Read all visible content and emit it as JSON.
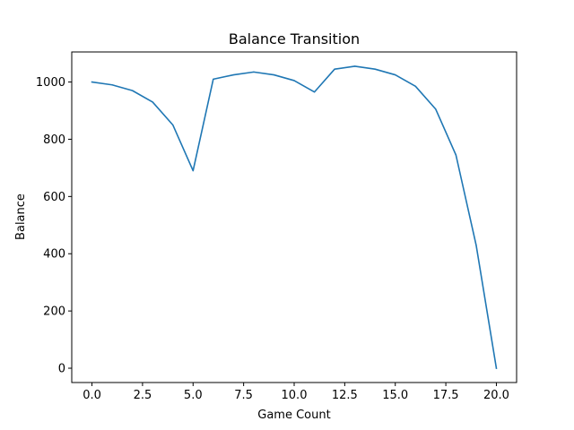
{
  "chart_data": {
    "type": "line",
    "title": "Balance Transition",
    "xlabel": "Game Count",
    "ylabel": "Balance",
    "xlim": [
      -1.0,
      21.0
    ],
    "ylim": [
      -50,
      1105
    ],
    "xticks": [
      0.0,
      2.5,
      5.0,
      7.5,
      10.0,
      12.5,
      15.0,
      17.5,
      20.0
    ],
    "xtick_labels": [
      "0.0",
      "2.5",
      "5.0",
      "7.5",
      "10.0",
      "12.5",
      "15.0",
      "17.5",
      "20.0"
    ],
    "yticks": [
      0,
      200,
      400,
      600,
      800,
      1000
    ],
    "ytick_labels": [
      "0",
      "200",
      "400",
      "600",
      "800",
      "1000"
    ],
    "grid": false,
    "line_color": "#1f77b4",
    "series": [
      {
        "x": [
          0,
          1,
          2,
          3,
          4,
          5,
          6,
          7,
          8,
          9,
          10,
          11,
          12,
          13,
          14,
          15,
          16,
          17,
          18,
          19,
          20
        ],
        "values": [
          1000,
          990,
          970,
          930,
          850,
          690,
          1010,
          1025,
          1035,
          1025,
          1005,
          965,
          1045,
          1055,
          1045,
          1025,
          985,
          905,
          745,
          430,
          0
        ]
      }
    ]
  }
}
